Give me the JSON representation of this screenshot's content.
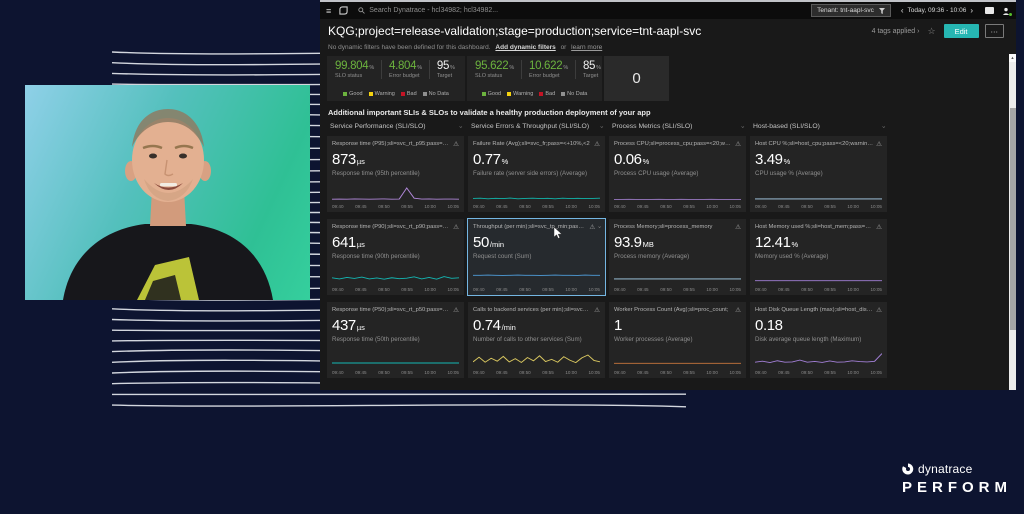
{
  "brand": {
    "name": "dynatrace",
    "event": "PERFORM"
  },
  "topbar": {
    "search": "Search Dynatrace - hcl34982; hcl34982...",
    "tenant": "Tenant: tnt-aapl-svc",
    "timeframe": "Today, 09:36 - 10:06",
    "prev": "‹",
    "next": "›"
  },
  "header": {
    "title": "KQG;project=release-validation;stage=production;service=tnt-aapl-svc",
    "note": "No dynamic filters have been defined for this dashboard.",
    "add_filters": "Add dynamic filters",
    "or": "or",
    "learn_more": "learn more",
    "tags": "4 tags applied ›",
    "star": "☆",
    "edit": "Edit",
    "more": "⋯"
  },
  "slo": {
    "labels": {
      "status": "SLO status",
      "budget": "Error budget",
      "target": "Target"
    },
    "unit": "%",
    "tiles": [
      {
        "status": "99.804",
        "budget": "4.804",
        "target": "95"
      },
      {
        "status": "95.622",
        "budget": "10.622",
        "target": "85"
      }
    ],
    "legend": [
      {
        "label": "Good",
        "color": "#6cb33e"
      },
      {
        "label": "Warning",
        "color": "#f5d30f"
      },
      {
        "label": "Bad",
        "color": "#c41425"
      },
      {
        "label": "No Data",
        "color": "#8f8f8f"
      }
    ],
    "count": "0"
  },
  "section": {
    "title": "Additional important SLIs & SLOs to validate a healthy production deployment of your app",
    "columns": [
      "Service Performance (SLI/SLO)",
      "Service Errors & Throughput (SLI/SLO)",
      "Process Metrics (SLI/SLO)",
      "Host-based (SLI/SLO)"
    ]
  },
  "time_ticks": [
    "09:40",
    "09:45",
    "09:50",
    "09:55",
    "10:00",
    "10:05"
  ],
  "tiles": [
    {
      "title": "Response time (P95);sli=svc_rt_p95;pass=<+10%,<600",
      "value": "873",
      "unit": "µs",
      "subtitle": "Response time (95th percentile)",
      "color": "#b087d9",
      "spark": [
        7,
        8,
        7,
        9,
        8,
        7,
        8,
        9,
        7,
        8,
        85,
        14,
        8,
        9,
        7,
        8,
        8,
        7
      ]
    },
    {
      "title": "Failure Rate (Avg);sli=svc_fr;pass=<+10%,<2",
      "value": "0.77",
      "unit": "%",
      "subtitle": "Failure rate (server side errors) (Average)",
      "color": "#12b5ab",
      "spark": [
        12,
        14,
        10,
        13,
        11,
        15,
        10,
        12,
        14,
        11,
        13,
        10,
        14,
        11,
        13,
        11,
        12,
        14
      ]
    },
    {
      "title": "Process CPU;sli=process_cpu;pass=<20;warning=<50;k...",
      "value": "0.06",
      "unit": "%",
      "subtitle": "Process CPU usage (Average)",
      "color": "#9879c2",
      "spark": [
        5,
        5,
        6,
        5,
        5,
        5,
        6,
        5,
        5,
        6,
        5,
        5,
        5,
        6,
        5,
        5,
        5,
        5
      ]
    },
    {
      "title": "Host CPU %;sli=host_cpu;pass=<20;warning=<50;key...",
      "value": "3.49",
      "unit": "%",
      "subtitle": "CPU usage % (Average)",
      "color": "#aed6f2",
      "spark": [
        9,
        9,
        9,
        9,
        9,
        9,
        9,
        9,
        9,
        9,
        9,
        9,
        9,
        9,
        9,
        9,
        9,
        9
      ]
    },
    {
      "title": "Response time (P90);sli=svc_rt_p90;pass=<+10%,<350",
      "value": "641",
      "unit": "µs",
      "subtitle": "Response time (90th percentile)",
      "color": "#14b8b4",
      "spark": [
        38,
        30,
        40,
        33,
        42,
        30,
        36,
        28,
        38,
        31,
        35,
        44,
        30,
        40,
        28,
        46,
        34,
        38
      ]
    },
    {
      "title": "Throughput (per min);sli=svc_tp_min;pass=>+10%,>200",
      "value": "50",
      "unit": "/min",
      "subtitle": "Request count (Sum)",
      "color": "#4f9edb",
      "spark": [
        55,
        55,
        56,
        55,
        54,
        55,
        56,
        55,
        55,
        54,
        55,
        56,
        55,
        55,
        54,
        56,
        55,
        55
      ]
    },
    {
      "title": "Process Memory;sli=process_memory",
      "value": "93.9",
      "unit": "MB",
      "subtitle": "Process memory (Average)",
      "color": "#a8d4ee",
      "spark": [
        30,
        30,
        30,
        30,
        30,
        30,
        30,
        30,
        30,
        30,
        30,
        30,
        30,
        30,
        30,
        30,
        30,
        30
      ]
    },
    {
      "title": "Host Memory used %;sli=host_mem;pass=<20;warnin...",
      "value": "12.41",
      "unit": "%",
      "subtitle": "Memory used % (Average)",
      "color": "#a27fd6",
      "spark": [
        18,
        18,
        18,
        18,
        18,
        18,
        18,
        18,
        18,
        18,
        18,
        18,
        18,
        18,
        18,
        18,
        18,
        18
      ]
    },
    {
      "title": "Response time (P50);sli=svc_rt_p50;pass=<+10%,<200",
      "value": "437",
      "unit": "µs",
      "subtitle": "Response time (50th percentile)",
      "color": "#14b8b4",
      "spark": [
        22,
        22,
        22,
        22,
        22,
        22,
        22,
        22,
        22,
        22,
        22,
        22,
        22,
        22,
        22,
        22,
        22,
        22
      ]
    },
    {
      "title": "Calls to backend services (per min);sli=svc2svc_calls;",
      "value": "0.74",
      "unit": "/min",
      "subtitle": "Number of calls to other services (Sum)",
      "color": "#d9c760",
      "spark": [
        30,
        62,
        28,
        55,
        35,
        68,
        30,
        52,
        26,
        60,
        38,
        72,
        32,
        48,
        28,
        66,
        42,
        25,
        58,
        78,
        40,
        30
      ]
    },
    {
      "title": "Worker Process Count (Avg);sli=proc_count;",
      "value": "1",
      "unit": "",
      "subtitle": "Worker processes (Average)",
      "color": "#c9763d",
      "spark": [
        20,
        20,
        20,
        20,
        20,
        20,
        20,
        20,
        20,
        20,
        20,
        20,
        20,
        20,
        20,
        20,
        20,
        20
      ]
    },
    {
      "title": "Host Disk Queue Length (max);sli=host_disk_queue;pa...",
      "value": "0.18",
      "unit": "",
      "subtitle": "Disk average queue length (Maximum)",
      "color": "#a27fd6",
      "spark": [
        28,
        35,
        25,
        38,
        28,
        30,
        42,
        28,
        33,
        26,
        36,
        28,
        30,
        38,
        32,
        30,
        34,
        88
      ]
    }
  ]
}
